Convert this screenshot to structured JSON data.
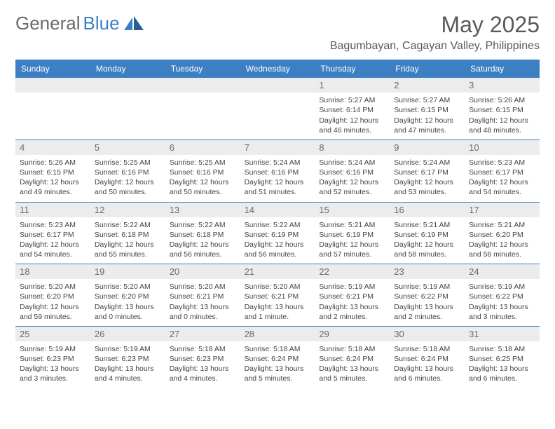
{
  "logo": {
    "text_gray": "General",
    "text_blue": "Blue"
  },
  "title": "May 2025",
  "location": "Bagumbayan, Cagayan Valley, Philippines",
  "weekdays": [
    "Sunday",
    "Monday",
    "Tuesday",
    "Wednesday",
    "Thursday",
    "Friday",
    "Saturday"
  ],
  "colors": {
    "header_bar": "#3c80c3",
    "day_num_bg": "#ececec",
    "text_gray": "#6a6a6a",
    "border": "#3c80c3"
  },
  "weeks": [
    [
      {
        "empty": true
      },
      {
        "empty": true
      },
      {
        "empty": true
      },
      {
        "empty": true
      },
      {
        "num": "1",
        "sunrise": "5:27 AM",
        "sunset": "6:14 PM",
        "daylight": "12 hours and 46 minutes."
      },
      {
        "num": "2",
        "sunrise": "5:27 AM",
        "sunset": "6:15 PM",
        "daylight": "12 hours and 47 minutes."
      },
      {
        "num": "3",
        "sunrise": "5:26 AM",
        "sunset": "6:15 PM",
        "daylight": "12 hours and 48 minutes."
      }
    ],
    [
      {
        "num": "4",
        "sunrise": "5:26 AM",
        "sunset": "6:15 PM",
        "daylight": "12 hours and 49 minutes."
      },
      {
        "num": "5",
        "sunrise": "5:25 AM",
        "sunset": "6:16 PM",
        "daylight": "12 hours and 50 minutes."
      },
      {
        "num": "6",
        "sunrise": "5:25 AM",
        "sunset": "6:16 PM",
        "daylight": "12 hours and 50 minutes."
      },
      {
        "num": "7",
        "sunrise": "5:24 AM",
        "sunset": "6:16 PM",
        "daylight": "12 hours and 51 minutes."
      },
      {
        "num": "8",
        "sunrise": "5:24 AM",
        "sunset": "6:16 PM",
        "daylight": "12 hours and 52 minutes."
      },
      {
        "num": "9",
        "sunrise": "5:24 AM",
        "sunset": "6:17 PM",
        "daylight": "12 hours and 53 minutes."
      },
      {
        "num": "10",
        "sunrise": "5:23 AM",
        "sunset": "6:17 PM",
        "daylight": "12 hours and 54 minutes."
      }
    ],
    [
      {
        "num": "11",
        "sunrise": "5:23 AM",
        "sunset": "6:17 PM",
        "daylight": "12 hours and 54 minutes."
      },
      {
        "num": "12",
        "sunrise": "5:22 AM",
        "sunset": "6:18 PM",
        "daylight": "12 hours and 55 minutes."
      },
      {
        "num": "13",
        "sunrise": "5:22 AM",
        "sunset": "6:18 PM",
        "daylight": "12 hours and 56 minutes."
      },
      {
        "num": "14",
        "sunrise": "5:22 AM",
        "sunset": "6:19 PM",
        "daylight": "12 hours and 56 minutes."
      },
      {
        "num": "15",
        "sunrise": "5:21 AM",
        "sunset": "6:19 PM",
        "daylight": "12 hours and 57 minutes."
      },
      {
        "num": "16",
        "sunrise": "5:21 AM",
        "sunset": "6:19 PM",
        "daylight": "12 hours and 58 minutes."
      },
      {
        "num": "17",
        "sunrise": "5:21 AM",
        "sunset": "6:20 PM",
        "daylight": "12 hours and 58 minutes."
      }
    ],
    [
      {
        "num": "18",
        "sunrise": "5:20 AM",
        "sunset": "6:20 PM",
        "daylight": "12 hours and 59 minutes."
      },
      {
        "num": "19",
        "sunrise": "5:20 AM",
        "sunset": "6:20 PM",
        "daylight": "13 hours and 0 minutes."
      },
      {
        "num": "20",
        "sunrise": "5:20 AM",
        "sunset": "6:21 PM",
        "daylight": "13 hours and 0 minutes."
      },
      {
        "num": "21",
        "sunrise": "5:20 AM",
        "sunset": "6:21 PM",
        "daylight": "13 hours and 1 minute."
      },
      {
        "num": "22",
        "sunrise": "5:19 AM",
        "sunset": "6:21 PM",
        "daylight": "13 hours and 2 minutes."
      },
      {
        "num": "23",
        "sunrise": "5:19 AM",
        "sunset": "6:22 PM",
        "daylight": "13 hours and 2 minutes."
      },
      {
        "num": "24",
        "sunrise": "5:19 AM",
        "sunset": "6:22 PM",
        "daylight": "13 hours and 3 minutes."
      }
    ],
    [
      {
        "num": "25",
        "sunrise": "5:19 AM",
        "sunset": "6:23 PM",
        "daylight": "13 hours and 3 minutes."
      },
      {
        "num": "26",
        "sunrise": "5:19 AM",
        "sunset": "6:23 PM",
        "daylight": "13 hours and 4 minutes."
      },
      {
        "num": "27",
        "sunrise": "5:18 AM",
        "sunset": "6:23 PM",
        "daylight": "13 hours and 4 minutes."
      },
      {
        "num": "28",
        "sunrise": "5:18 AM",
        "sunset": "6:24 PM",
        "daylight": "13 hours and 5 minutes."
      },
      {
        "num": "29",
        "sunrise": "5:18 AM",
        "sunset": "6:24 PM",
        "daylight": "13 hours and 5 minutes."
      },
      {
        "num": "30",
        "sunrise": "5:18 AM",
        "sunset": "6:24 PM",
        "daylight": "13 hours and 6 minutes."
      },
      {
        "num": "31",
        "sunrise": "5:18 AM",
        "sunset": "6:25 PM",
        "daylight": "13 hours and 6 minutes."
      }
    ]
  ]
}
